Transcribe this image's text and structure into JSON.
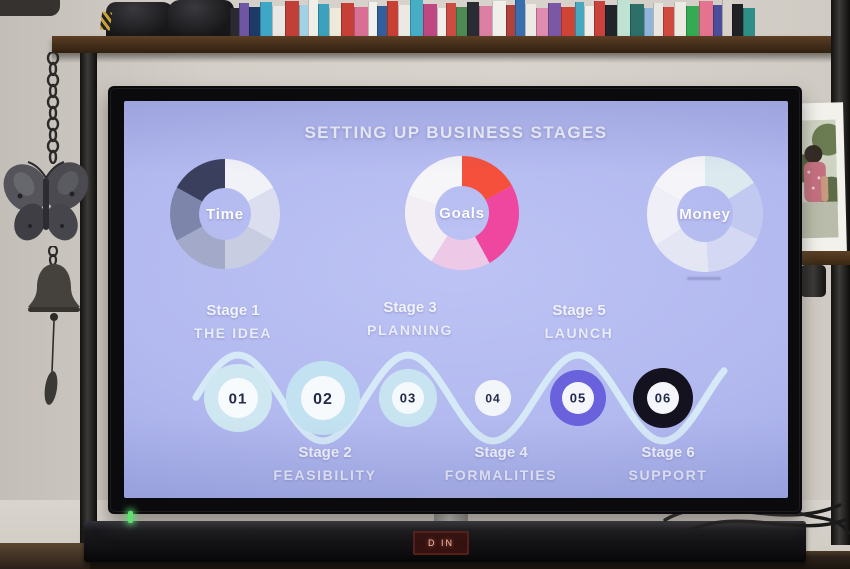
{
  "screen": {
    "title": "SETTING UP BUSINESS STAGES",
    "stages": [
      {
        "num": "01",
        "stage": "Stage 1",
        "name": "THE IDEA"
      },
      {
        "num": "02",
        "stage": "Stage 2",
        "name": "FEASIBILITY"
      },
      {
        "num": "03",
        "stage": "Stage 3",
        "name": "PLANNING"
      },
      {
        "num": "04",
        "stage": "Stage 4",
        "name": "FORMALITIES"
      },
      {
        "num": "05",
        "stage": "Stage 5",
        "name": "LAUNCH"
      },
      {
        "num": "06",
        "stage": "Stage 6",
        "name": "SUPPORT"
      }
    ],
    "timeline": {
      "wave_color": "#d9edf7",
      "number_color": "#232948",
      "circles": [
        {
          "ring": "#cfe7f0",
          "inner": "#f7fbfd",
          "r": 34,
          "ri": 20,
          "fs": 15
        },
        {
          "ring": "#c3e2f1",
          "inner": "#f6fafc",
          "r": 37,
          "ri": 22,
          "fs": 16
        },
        {
          "ring": "#c8e4f1",
          "inner": "#f5f9fc",
          "r": 29,
          "ri": 16,
          "fs": 13
        },
        {
          "ring": "#f2f6fa",
          "inner": "#f2f6fa",
          "r": 18,
          "ri": 18,
          "fs": 12
        },
        {
          "ring": "#6a61dc",
          "inner": "#f4f6fb",
          "r": 28,
          "ri": 16,
          "fs": 13
        },
        {
          "ring": "#14121f",
          "inner": "#f4f6fb",
          "r": 30,
          "ri": 16,
          "fs": 13
        }
      ]
    },
    "colors": {
      "background_top": "#bdc3f4",
      "background_bottom": "#8e98de",
      "title_text": "#f3f4fb",
      "label_text": "#e9ecf9"
    }
  },
  "chart_data": [
    {
      "type": "pie",
      "donut": true,
      "title": "Time",
      "values": [
        17,
        16,
        17,
        17,
        16,
        17
      ],
      "colors": [
        "#f1f2f8",
        "#dbdeee",
        "#c8cde2",
        "#a3aac9",
        "#7e85aa",
        "#3a3f5d"
      ],
      "legend_position": "center",
      "label": "Time"
    },
    {
      "type": "pie",
      "donut": true,
      "title": "Goals",
      "values": [
        17,
        25,
        17,
        21,
        20
      ],
      "colors": [
        "#f4503c",
        "#ef469f",
        "#edc9e7",
        "#f2eef4",
        "#f6f5f8"
      ],
      "legend_position": "center",
      "label": "Goals"
    },
    {
      "type": "pie",
      "donut": true,
      "title": "Money",
      "values": [
        16,
        16,
        17,
        17,
        17,
        17
      ],
      "colors": [
        "#dce9ef",
        "#c2c9f0",
        "#d4d8f2",
        "#e4e6f4",
        "#eff0f7",
        "#f5f5f9"
      ],
      "legend_position": "center",
      "label": "Money"
    }
  ],
  "environment": {
    "soundbar_display": "D IN",
    "dvd_spines": [
      "#2a2b31",
      "#6e56a2",
      "#1e3a66",
      "#3fa7c6",
      "#e9e7e3",
      "#c23f38",
      "#9fd2e4",
      "#f0eee9",
      "#3aa2bd",
      "#efe9da",
      "#c74038",
      "#d96f92",
      "#f2f0ec",
      "#33609c",
      "#c93f33",
      "#ece9e4",
      "#45aec4",
      "#bf4782",
      "#f0efeb",
      "#cd4b41",
      "#4d8b52",
      "#2a2c33",
      "#dd7fa3",
      "#f1efe9",
      "#b0413c",
      "#3a6fae",
      "#eceae5",
      "#e08bb0",
      "#7a58a6",
      "#cf4436",
      "#47a8bf",
      "#f0eee8",
      "#c9423c",
      "#22242b",
      "#bfe2d2",
      "#2e6f6a",
      "#8fb5d8",
      "#e8e6e0",
      "#d04a40",
      "#edeae3",
      "#35aa52",
      "#e5738f",
      "#4a4e99",
      "#d7d3cc",
      "#1f2126",
      "#2f8f86"
    ]
  }
}
